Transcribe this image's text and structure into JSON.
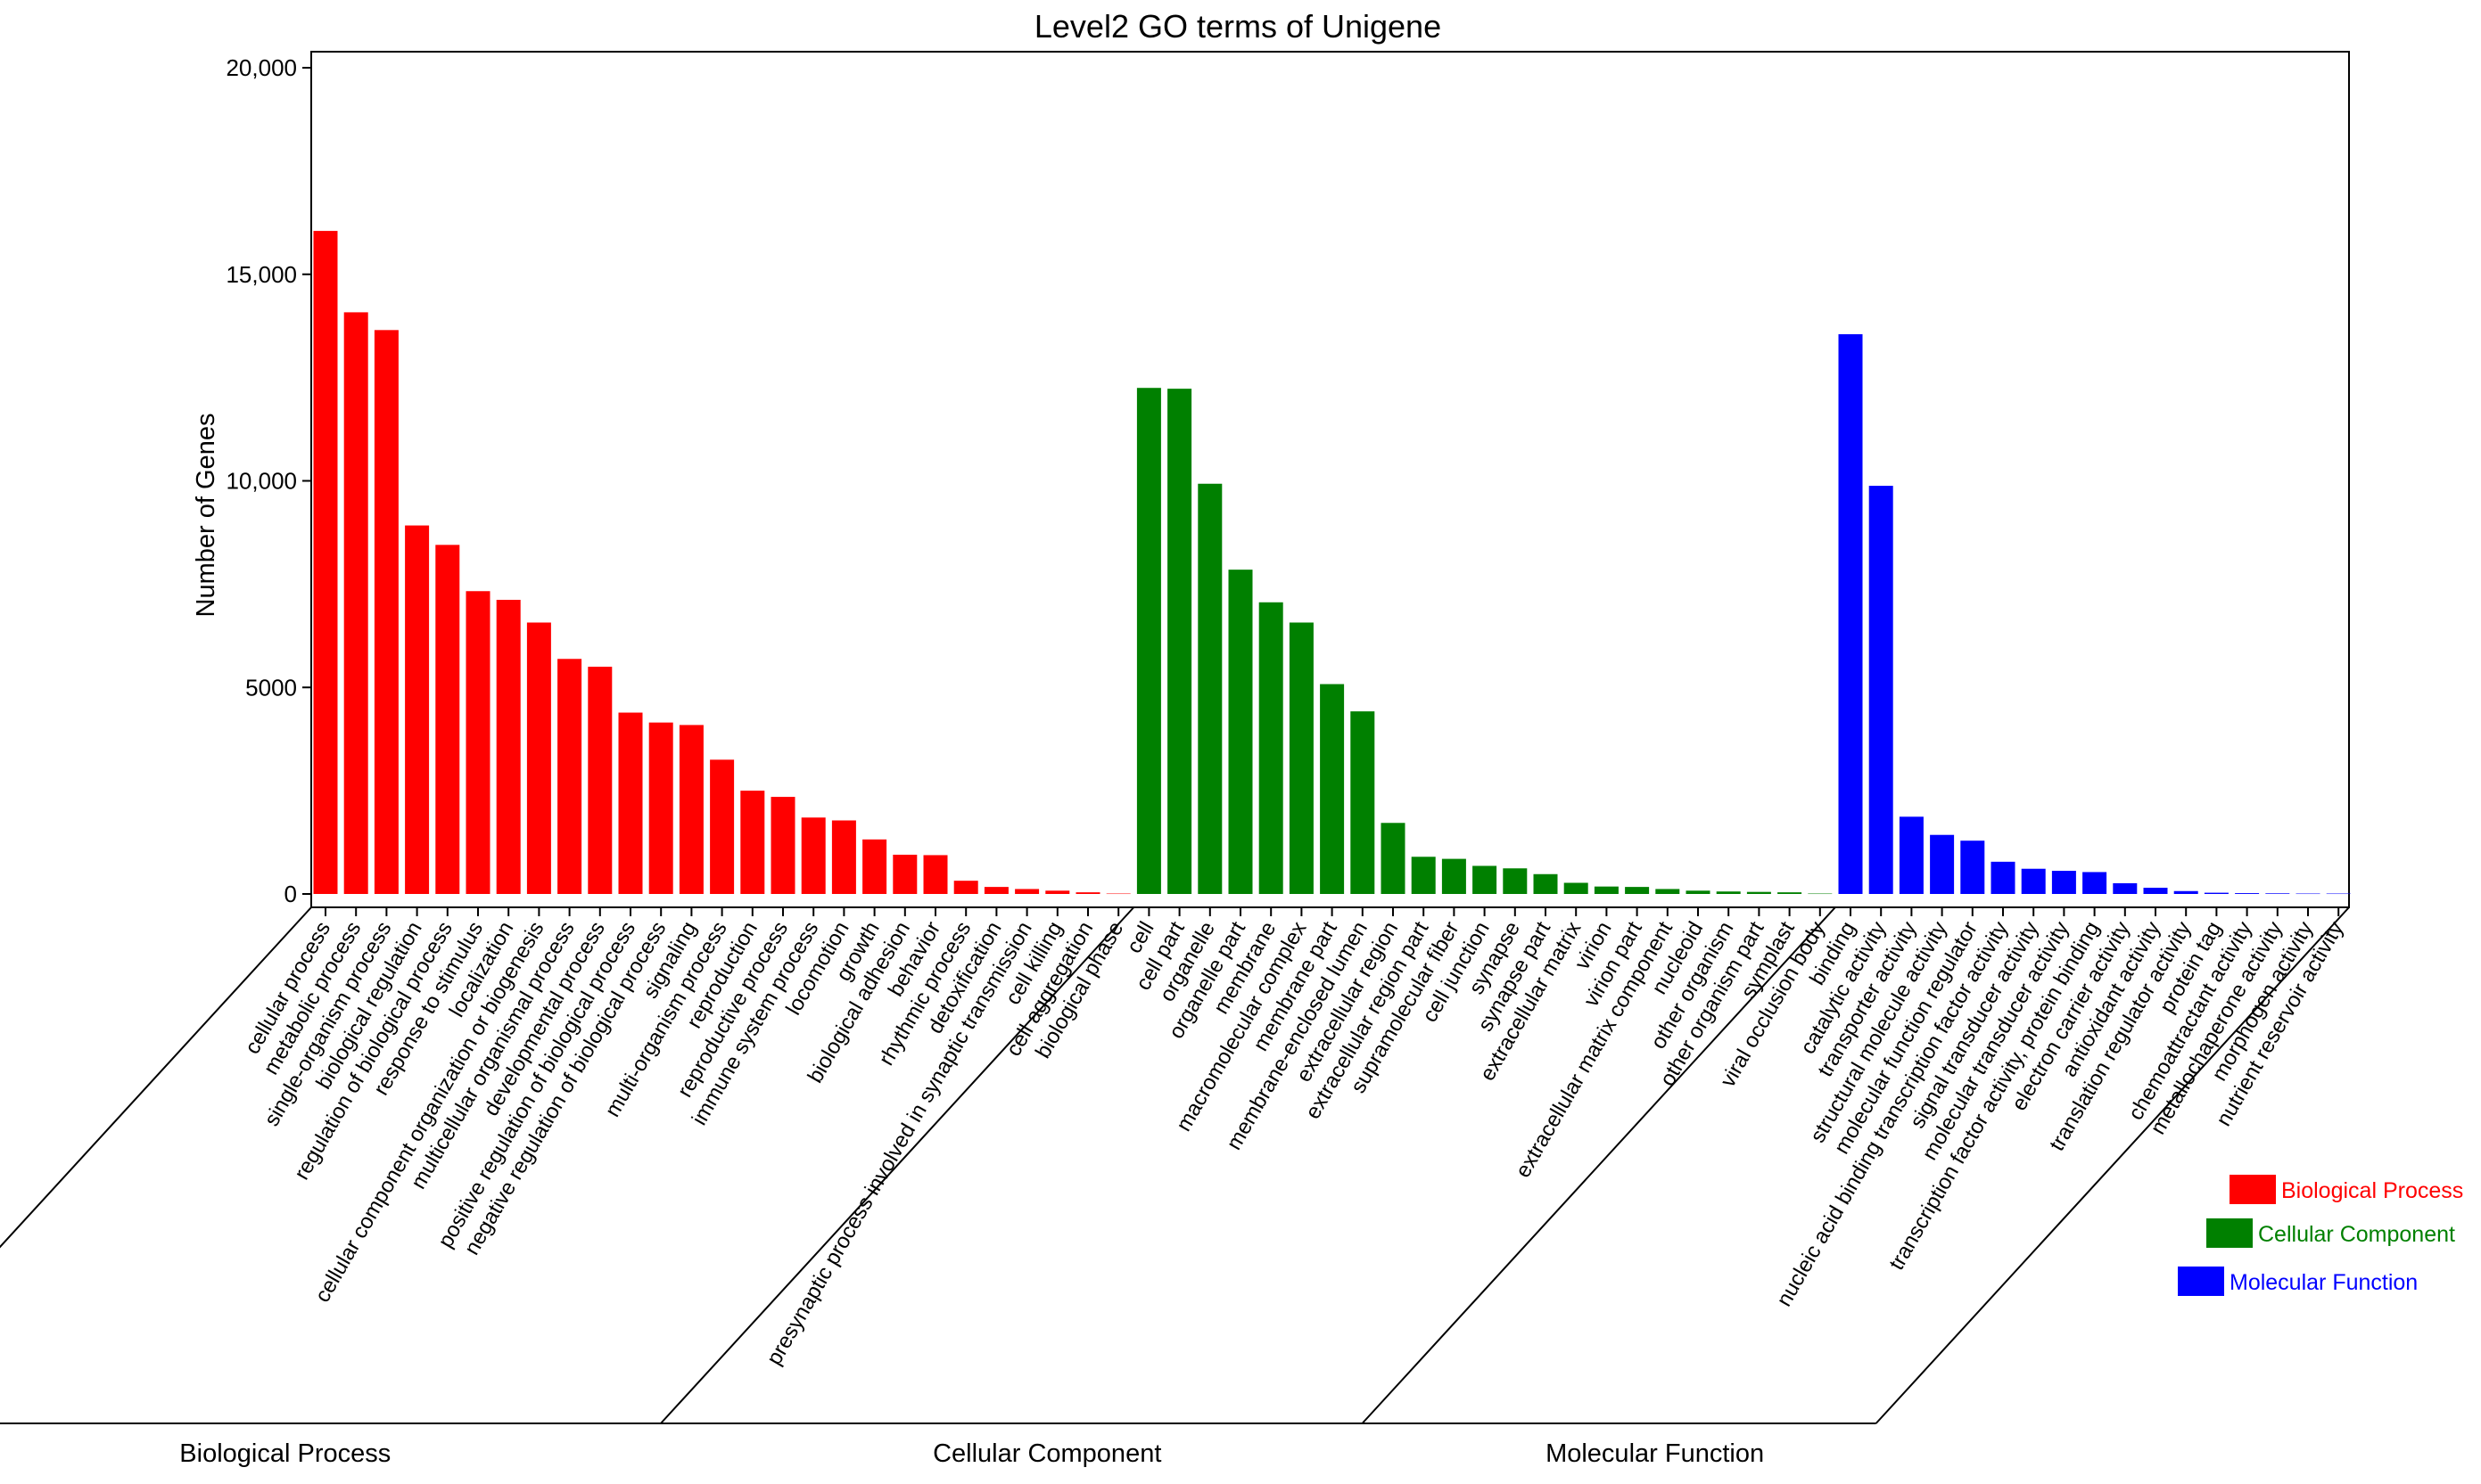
{
  "chart_data": {
    "type": "bar",
    "title": "Level2 GO terms of Unigene",
    "xlabel": "",
    "ylabel": "Number of Genes",
    "ylim": [
      0,
      20300
    ],
    "yticks": [
      {
        "value": 0,
        "label": "0"
      },
      {
        "value": 5000,
        "label": "5000"
      },
      {
        "value": 10000,
        "label": "10,000"
      },
      {
        "value": 15000,
        "label": "15,000"
      },
      {
        "value": 20000,
        "label": "20,000"
      }
    ],
    "grid": false,
    "legend_position": "bottom-right",
    "series": [
      {
        "name": "Biological Process",
        "color": "#ff0000",
        "categories": [
          "cellular process",
          "metabolic process",
          "single-organism process",
          "biological regulation",
          "regulation of biological process",
          "response to stimulus",
          "localization",
          "cellular component organization or biogenesis",
          "multicellular organismal process",
          "developmental process",
          "positive regulation of biological process",
          "negative regulation of biological process",
          "signaling",
          "multi-organism process",
          "reproduction",
          "reproductive process",
          "immune system process",
          "locomotion",
          "growth",
          "biological adhesion",
          "behavior",
          "rhythmic process",
          "detoxification",
          "presynaptic process involved in synaptic transmission",
          "cell killing",
          "cell aggregation",
          "biological phase"
        ],
        "values": [
          16050,
          14080,
          13650,
          8920,
          8450,
          7330,
          7120,
          6570,
          5690,
          5500,
          4390,
          4150,
          4090,
          3250,
          2500,
          2350,
          1850,
          1780,
          1320,
          950,
          940,
          320,
          170,
          120,
          80,
          40,
          10
        ]
      },
      {
        "name": "Cellular Component",
        "color": "#008000",
        "categories": [
          "cell",
          "cell part",
          "organelle",
          "organelle part",
          "membrane",
          "macromolecular complex",
          "membrane part",
          "membrane-enclosed lumen",
          "extracellular region",
          "extracellular region part",
          "supramolecular fiber",
          "cell junction",
          "synapse",
          "synapse part",
          "extracellular matrix",
          "virion",
          "virion part",
          "extracellular matrix component",
          "nucleoid",
          "other organism",
          "other organism part",
          "symplast",
          "viral occlusion body"
        ],
        "values": [
          12250,
          12230,
          9930,
          7850,
          7060,
          6570,
          5080,
          4420,
          1720,
          900,
          850,
          680,
          620,
          480,
          270,
          180,
          170,
          120,
          80,
          60,
          50,
          40,
          10
        ]
      },
      {
        "name": "Molecular Function",
        "color": "#0000ff",
        "categories": [
          "binding",
          "catalytic activity",
          "transporter activity",
          "structural molecule activity",
          "molecular function regulator",
          "nucleic acid binding transcription factor activity",
          "signal transducer activity",
          "molecular transducer activity",
          "transcription factor activity, protein binding",
          "electron carrier activity",
          "antioxidant activity",
          "translation regulator activity",
          "protein tag",
          "chemoattractant activity",
          "metallochaperone activity",
          "morphogen activity",
          "nutrient reservoir activity"
        ],
        "values": [
          13550,
          9880,
          1870,
          1430,
          1290,
          780,
          610,
          560,
          530,
          260,
          150,
          70,
          30,
          20,
          15,
          10,
          10
        ]
      }
    ],
    "group_labels": [
      "Biological Process",
      "Cellular Component",
      "Molecular Function"
    ]
  }
}
